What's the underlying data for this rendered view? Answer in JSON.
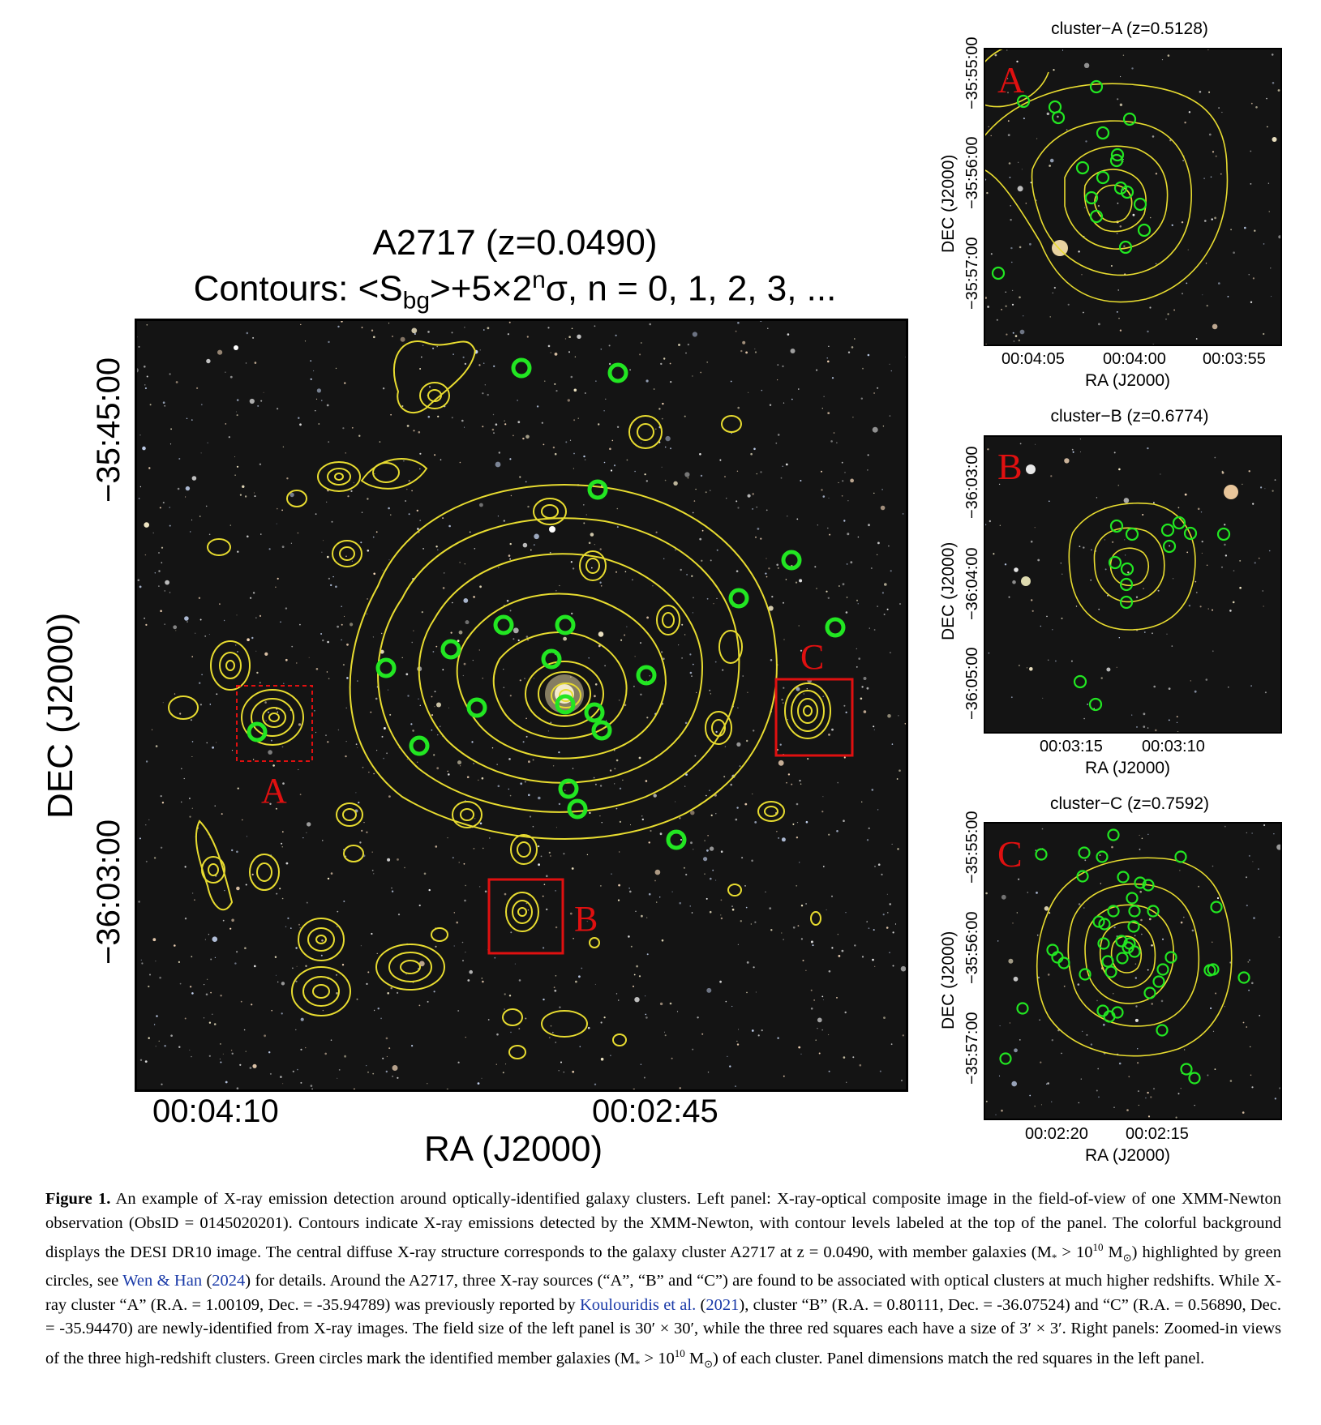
{
  "main_panel": {
    "title_line1": "A2717 (z=0.0490)",
    "title_line2_prefix": "Contours: <S",
    "title_line2_sub": "bg",
    "title_line2_mid": ">+5×2",
    "title_line2_sup": "n",
    "title_line2_suffix": "σ, n = 0, 1, 2, 3, ...",
    "xlabel": "RA (J2000)",
    "ylabel": "DEC (J2000)",
    "xticks": [
      "00:04:10",
      "00:02:45"
    ],
    "yticks": [
      "−35:45:00",
      "−36:03:00"
    ],
    "box_labels": [
      "A",
      "B",
      "C"
    ]
  },
  "panel_a": {
    "title": "cluster−A (z=0.5128)",
    "letter": "A",
    "xlabel": "RA (J2000)",
    "ylabel": "DEC (J2000)",
    "xticks": [
      "00:04:05",
      "00:04:00",
      "00:03:55"
    ],
    "yticks": [
      "−35:55:00",
      "−35:56:00",
      "−35:57:00"
    ]
  },
  "panel_b": {
    "title": "cluster−B (z=0.6774)",
    "letter": "B",
    "xlabel": "RA (J2000)",
    "ylabel": "DEC (J2000)",
    "xticks": [
      "00:03:15",
      "00:03:10"
    ],
    "yticks": [
      "−36:03:00",
      "−36:04:00",
      "−36:05:00"
    ]
  },
  "panel_c": {
    "title": "cluster−C (z=0.7592)",
    "letter": "C",
    "xlabel": "RA (J2000)",
    "ylabel": "DEC (J2000)",
    "xticks": [
      "00:02:20",
      "00:02:15"
    ],
    "yticks": [
      "−35:55:00",
      "−35:56:00",
      "−35:57:00"
    ]
  },
  "caption": {
    "label": "Figure 1.",
    "t1": " An example of X-ray emission detection around optically-identified galaxy clusters. Left panel: X-ray-optical composite image in the field-of-view of one XMM-Newton observation (ObsID = 0145020201). Contours indicate X-ray emissions detected by the XMM-Newton, with contour levels labeled at the top of the panel. The colorful background displays the DESI DR10 image. The central diffuse X-ray structure corresponds to the galaxy cluster A2717 at z = 0.0490, with member galaxies (M",
    "t1_sub": "*",
    "t1b": " > 10",
    "t1_sup": "10",
    "t1c": " M",
    "t1_sun": "⊙",
    "t2": ") highlighted by green circles, see ",
    "ref1": "Wen & Han",
    "ref1_year": "2024",
    "t3": " for details. Around the A2717, three X-ray sources (“A”, “B” and “C”) are found to be associated with optical clusters at much higher redshifts. While X-ray cluster “A” (R.A. = 1.00109, Dec. = -35.94789) was previously reported by ",
    "ref2": "Koulouridis et al.",
    "ref2_year": "2021",
    "t4": ", cluster “B” (R.A. = 0.80111, Dec. = -36.07524) and “C” (R.A. = 0.56890, Dec. = -35.94470) are newly-identified from X-ray images. The field size of the left panel is 30′ × 30′, while the three red squares each have a size of 3′ × 3′. Right panels: Zoomed-in views of the three high-redshift clusters. Green circles mark the identified member galaxies (M",
    "t4_sub": "*",
    "t4b": " > 10",
    "t4_sup": "10",
    "t4c": " M",
    "t4_sun": "⊙",
    "t5": ") of each cluster. Panel dimensions match the red squares in the left panel."
  },
  "colors": {
    "contour": "#e8dc30",
    "member_circle": "#22e622",
    "marker_box": "#e01010",
    "sky": "#141414"
  }
}
